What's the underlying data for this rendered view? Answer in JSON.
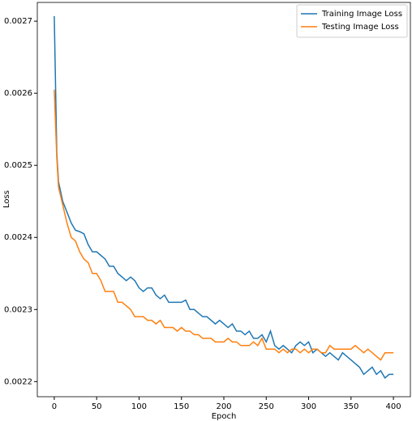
{
  "chart_data": {
    "type": "line",
    "xlabel": "Epoch",
    "ylabel": "Loss",
    "x": [
      0,
      3,
      5,
      10,
      15,
      20,
      25,
      30,
      35,
      40,
      45,
      50,
      55,
      60,
      65,
      70,
      75,
      80,
      85,
      90,
      95,
      100,
      105,
      110,
      115,
      120,
      125,
      130,
      135,
      140,
      145,
      150,
      155,
      160,
      165,
      170,
      175,
      180,
      185,
      190,
      195,
      200,
      205,
      210,
      215,
      220,
      225,
      230,
      235,
      240,
      245,
      250,
      255,
      260,
      265,
      270,
      275,
      280,
      285,
      290,
      295,
      300,
      305,
      310,
      315,
      320,
      325,
      330,
      335,
      340,
      345,
      350,
      355,
      360,
      365,
      370,
      375,
      380,
      385,
      390,
      395,
      400
    ],
    "series": [
      {
        "name": "Training Image Loss",
        "color": "#1f77b4",
        "values": [
          0.002707,
          0.002516,
          0.002477,
          0.00245,
          0.002435,
          0.00242,
          0.00241,
          0.002408,
          0.002405,
          0.00239,
          0.00238,
          0.00238,
          0.002375,
          0.00237,
          0.00236,
          0.00236,
          0.00235,
          0.002345,
          0.00234,
          0.002345,
          0.00234,
          0.00233,
          0.002325,
          0.00233,
          0.00233,
          0.00232,
          0.002315,
          0.00232,
          0.00231,
          0.00231,
          0.00231,
          0.00231,
          0.002313,
          0.0023,
          0.0023,
          0.002295,
          0.00229,
          0.00229,
          0.002285,
          0.00228,
          0.002285,
          0.00228,
          0.002275,
          0.00228,
          0.00227,
          0.00227,
          0.002265,
          0.00227,
          0.00226,
          0.00226,
          0.002265,
          0.002255,
          0.00227,
          0.00225,
          0.002245,
          0.00225,
          0.002245,
          0.00224,
          0.00225,
          0.002255,
          0.00225,
          0.002255,
          0.00224,
          0.002245,
          0.00224,
          0.002235,
          0.00224,
          0.002235,
          0.00223,
          0.00224,
          0.002235,
          0.00223,
          0.002225,
          0.00222,
          0.00221,
          0.002215,
          0.00222,
          0.00221,
          0.002215,
          0.002205,
          0.00221,
          0.00221
        ]
      },
      {
        "name": "Testing Image Loss",
        "color": "#ff7f0e",
        "values": [
          0.002605,
          0.00251,
          0.00247,
          0.002445,
          0.00242,
          0.0024,
          0.002395,
          0.00238,
          0.00237,
          0.002365,
          0.00235,
          0.00235,
          0.00234,
          0.002325,
          0.002325,
          0.002325,
          0.00231,
          0.00231,
          0.002305,
          0.0023,
          0.00229,
          0.00229,
          0.00229,
          0.002285,
          0.002285,
          0.00228,
          0.002285,
          0.002275,
          0.002275,
          0.002275,
          0.00227,
          0.002275,
          0.00227,
          0.00227,
          0.002265,
          0.002265,
          0.00226,
          0.00226,
          0.00226,
          0.002255,
          0.002255,
          0.002255,
          0.00226,
          0.002255,
          0.002255,
          0.00225,
          0.00225,
          0.00225,
          0.002255,
          0.00225,
          0.00226,
          0.002245,
          0.002245,
          0.002245,
          0.00224,
          0.002245,
          0.00224,
          0.002245,
          0.002245,
          0.00224,
          0.002245,
          0.00224,
          0.002245,
          0.002245,
          0.00224,
          0.00224,
          0.00225,
          0.002245,
          0.002245,
          0.002245,
          0.002245,
          0.002245,
          0.00225,
          0.002245,
          0.00224,
          0.002245,
          0.00224,
          0.002235,
          0.00223,
          0.00224,
          0.00224,
          0.00224
        ]
      }
    ],
    "xlim": [
      -20,
      420
    ],
    "ylim": [
      0.002179,
      0.002726
    ],
    "xticks": [
      0,
      50,
      100,
      150,
      200,
      250,
      300,
      350,
      400
    ],
    "yticks": [
      0.0022,
      0.0023,
      0.0024,
      0.0025,
      0.0026,
      0.0027
    ],
    "legend": "upper right"
  }
}
